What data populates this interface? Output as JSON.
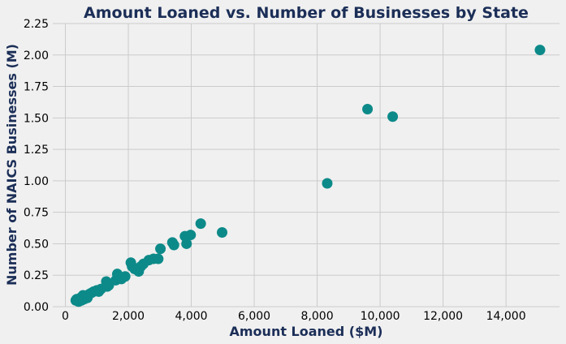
{
  "chart_data": {
    "type": "scatter",
    "title": "Amount Loaned vs. Number of Businesses by State",
    "xlabel": "Amount Loaned ($M)",
    "ylabel": "Number of NAICS Businesses (M)",
    "xlim": [
      -400,
      15700
    ],
    "ylim": [
      0,
      2.25
    ],
    "x_ticks": [
      0,
      2000,
      4000,
      6000,
      8000,
      10000,
      12000,
      14000
    ],
    "x_tick_labels": [
      "0",
      "2,000",
      "4,000",
      "6,000",
      "8,000",
      "10,000",
      "12,000",
      "14,000"
    ],
    "y_ticks": [
      0,
      0.25,
      0.5,
      0.75,
      1.0,
      1.25,
      1.5,
      1.75,
      2.0,
      2.25
    ],
    "y_tick_labels": [
      "0.00",
      "0.25",
      "0.50",
      "0.75",
      "1.00",
      "1.25",
      "1.50",
      "1.75",
      "2.00",
      "2.25"
    ],
    "grid": true,
    "point_color": "#0c8a89",
    "series": [
      {
        "x": [
          330,
          360,
          420,
          480,
          510,
          560,
          600,
          640,
          700,
          760,
          830,
          900,
          1000,
          1060,
          1130,
          1300,
          1330,
          1380,
          1600,
          1650,
          1700,
          1780,
          1900,
          2080,
          2120,
          2200,
          2330,
          2400,
          2480,
          2650,
          2800,
          2950,
          3020,
          3400,
          3450,
          3800,
          3850,
          3980,
          4300,
          4980,
          8320,
          9600,
          10400,
          15080
        ],
        "y": [
          0.05,
          0.06,
          0.04,
          0.07,
          0.05,
          0.09,
          0.06,
          0.08,
          0.07,
          0.1,
          0.11,
          0.12,
          0.13,
          0.12,
          0.14,
          0.2,
          0.16,
          0.17,
          0.21,
          0.26,
          0.23,
          0.22,
          0.24,
          0.35,
          0.32,
          0.3,
          0.28,
          0.32,
          0.34,
          0.37,
          0.38,
          0.38,
          0.46,
          0.51,
          0.49,
          0.56,
          0.5,
          0.57,
          0.66,
          0.59,
          0.98,
          1.57,
          1.51,
          2.04
        ]
      }
    ]
  }
}
